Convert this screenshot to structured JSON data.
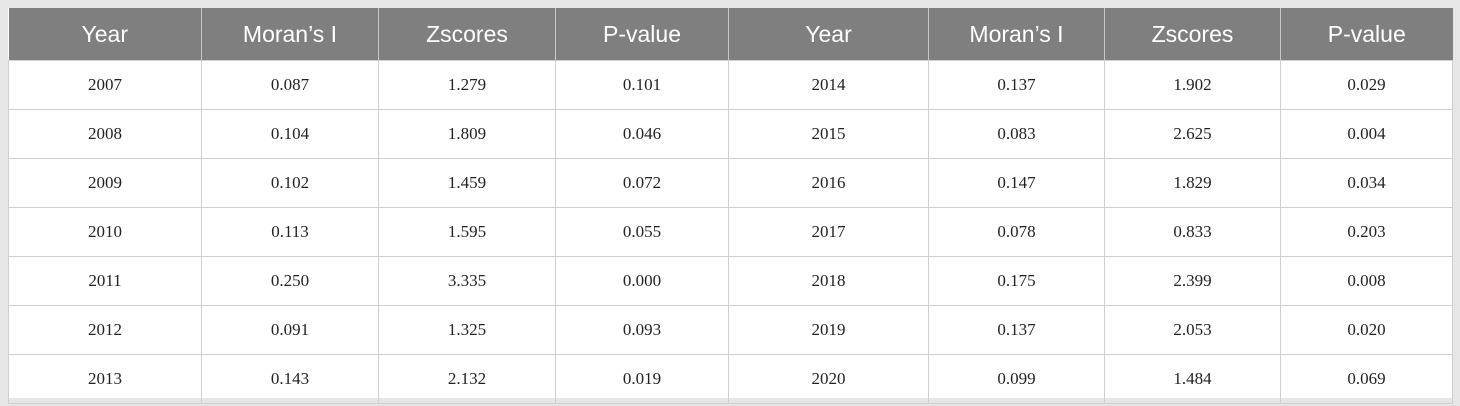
{
  "table": {
    "header": [
      "Year",
      "Moran’s I",
      "Zscores",
      "P-value",
      "Year",
      "Moran’s I",
      "Zscores",
      "P-value"
    ],
    "rows": [
      [
        "2007",
        "0.087",
        "1.279",
        "0.101",
        "2014",
        "0.137",
        "1.902",
        "0.029"
      ],
      [
        "2008",
        "0.104",
        "1.809",
        "0.046",
        "2015",
        "0.083",
        "2.625",
        "0.004"
      ],
      [
        "2009",
        "0.102",
        "1.459",
        "0.072",
        "2016",
        "0.147",
        "1.829",
        "0.034"
      ],
      [
        "2010",
        "0.113",
        "1.595",
        "0.055",
        "2017",
        "0.078",
        "0.833",
        "0.203"
      ],
      [
        "2011",
        "0.250",
        "3.335",
        "0.000",
        "2018",
        "0.175",
        "2.399",
        "0.008"
      ],
      [
        "2012",
        "0.091",
        "1.325",
        "0.093",
        "2019",
        "0.137",
        "2.053",
        "0.020"
      ],
      [
        "2013",
        "0.143",
        "2.132",
        "0.019",
        "2020",
        "0.099",
        "1.484",
        "0.069"
      ]
    ]
  }
}
